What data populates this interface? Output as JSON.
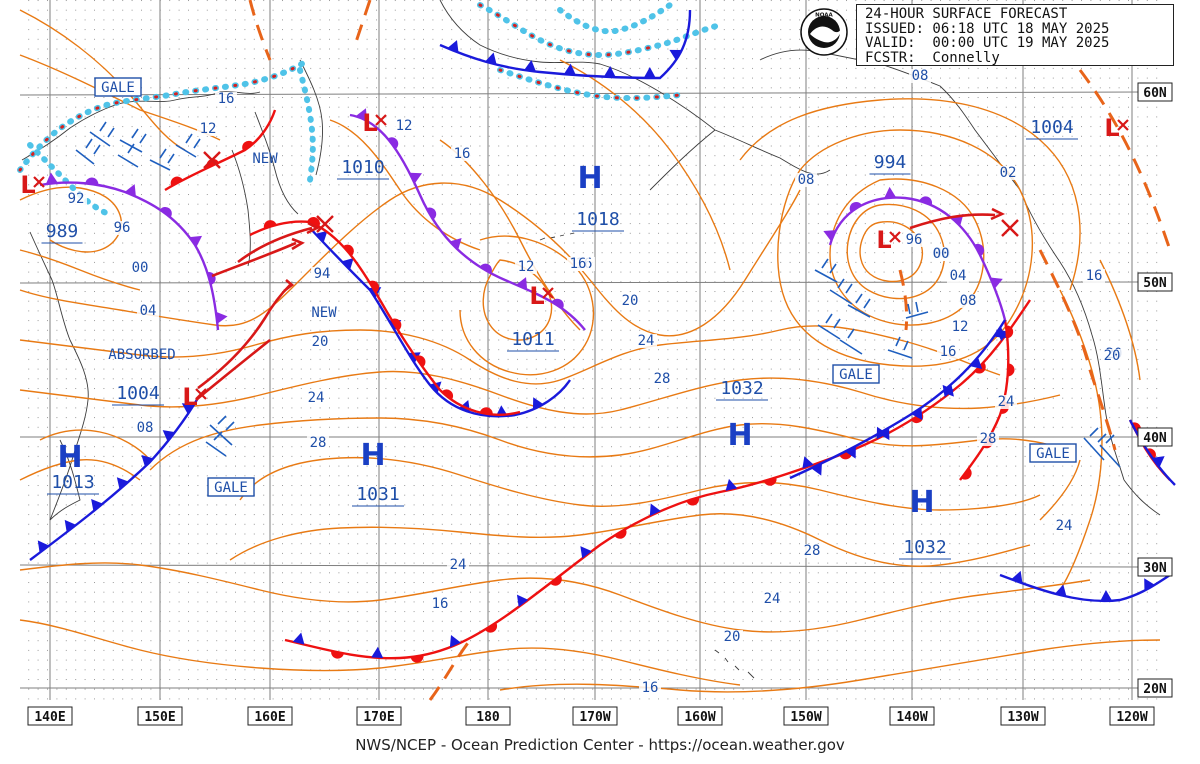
{
  "header": {
    "title": "24-HOUR SURFACE FORECAST",
    "issued": "ISSUED: 06:18 UTC 18 MAY 2025",
    "valid": "VALID:  00:00 UTC 19 MAY 2025",
    "forecaster": "FCSTR:  Connelly",
    "logo_text": "NOAA"
  },
  "footer": "NWS/NCEP - Ocean Prediction Center - https://ocean.weather.gov",
  "longitude_labels": [
    "140E",
    "150E",
    "160E",
    "170E",
    "180",
    "170W",
    "160W",
    "150W",
    "140W",
    "130W",
    "120W"
  ],
  "latitude_labels": [
    "60N",
    "50N",
    "40N",
    "30N",
    "20N"
  ],
  "pressure_centers": [
    {
      "type": "H",
      "pressure": "1018"
    },
    {
      "type": "H",
      "pressure": "1031"
    },
    {
      "type": "H",
      "pressure": "1032"
    },
    {
      "type": "H",
      "pressure": "1032"
    },
    {
      "type": "H",
      "pressure": "1013"
    },
    {
      "type": "L",
      "pressure": "1010"
    },
    {
      "type": "L",
      "pressure": "1011"
    },
    {
      "type": "L",
      "pressure": "994"
    },
    {
      "type": "L",
      "pressure": "1004"
    },
    {
      "type": "L",
      "pressure": "1004"
    },
    {
      "type": "L",
      "pressure": "989"
    }
  ],
  "isobar_labels": [
    "16",
    "12",
    "16",
    "12",
    "16",
    "12",
    "16",
    "08",
    "00",
    "04",
    "08",
    "12",
    "16",
    "20",
    "24",
    "28",
    "24",
    "20",
    "16",
    "24",
    "28",
    "28",
    "24",
    "20",
    "16",
    "00",
    "04",
    "08",
    "92",
    "96",
    "96",
    "00",
    "94",
    "08",
    "02",
    "16",
    "20",
    "24",
    "28",
    "24",
    "20"
  ],
  "annotations": {
    "gale": "GALE",
    "new": "NEW",
    "absorbed": "ABSORBED"
  },
  "colors": {
    "isobar": "#e87a14",
    "cold_front": "#1a1adb",
    "warm_front": "#ee1111",
    "occluded_front": "#8a2be2",
    "ice_edge": "#4fc3e8",
    "high": "#1a3fc4",
    "low": "#d81818",
    "grid": "#7a7a7a",
    "land": "#444444"
  }
}
